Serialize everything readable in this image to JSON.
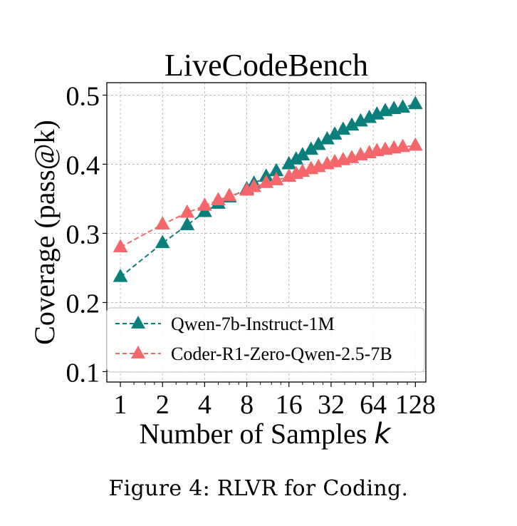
{
  "figure": {
    "caption": "Figure 4: RLVR for Coding."
  },
  "chart_data": {
    "type": "line",
    "title": "LiveCodeBench",
    "xlabel": "Number of Samples",
    "xlabel_var": "k",
    "ylabel": "Coverage (pass@k)",
    "xscale": "log2",
    "xlim": [
      0.8,
      152
    ],
    "ylim": [
      0.085,
      0.518
    ],
    "x_ticks": [
      1,
      2,
      4,
      8,
      16,
      32,
      64,
      128
    ],
    "x_tick_labels": [
      "1",
      "2",
      "4",
      "8",
      "16",
      "32",
      "64",
      "128"
    ],
    "y_ticks": [
      0.1,
      0.2,
      0.3,
      0.4,
      0.5
    ],
    "y_tick_labels": [
      "0.1",
      "0.2",
      "0.3",
      "0.4",
      "0.5"
    ],
    "grid": true,
    "legend_position": "lower-right",
    "x": [
      1,
      2,
      3,
      4,
      5,
      6,
      8,
      9,
      11,
      13,
      16,
      18,
      20,
      23,
      26,
      30,
      34,
      39,
      45,
      52,
      60,
      68,
      78,
      90,
      104,
      128
    ],
    "series": [
      {
        "name": "Qwen-7b-Instruct-1M",
        "color": "#0b7f7c",
        "marker": "triangle",
        "linestyle": "dashed",
        "values": [
          0.237,
          0.286,
          0.312,
          0.331,
          0.343,
          0.352,
          0.364,
          0.372,
          0.382,
          0.39,
          0.4,
          0.407,
          0.413,
          0.421,
          0.428,
          0.436,
          0.443,
          0.45,
          0.456,
          0.462,
          0.467,
          0.472,
          0.477,
          0.48,
          0.482,
          0.487
        ]
      },
      {
        "name": "Coder-R1-Zero-Qwen-2.5-7B",
        "color": "#f5676b",
        "marker": "triangle",
        "linestyle": "dashed",
        "values": [
          0.28,
          0.313,
          0.33,
          0.34,
          0.348,
          0.354,
          0.362,
          0.367,
          0.373,
          0.377,
          0.382,
          0.386,
          0.389,
          0.393,
          0.396,
          0.4,
          0.403,
          0.406,
          0.409,
          0.413,
          0.416,
          0.419,
          0.421,
          0.423,
          0.425,
          0.427
        ]
      }
    ]
  }
}
